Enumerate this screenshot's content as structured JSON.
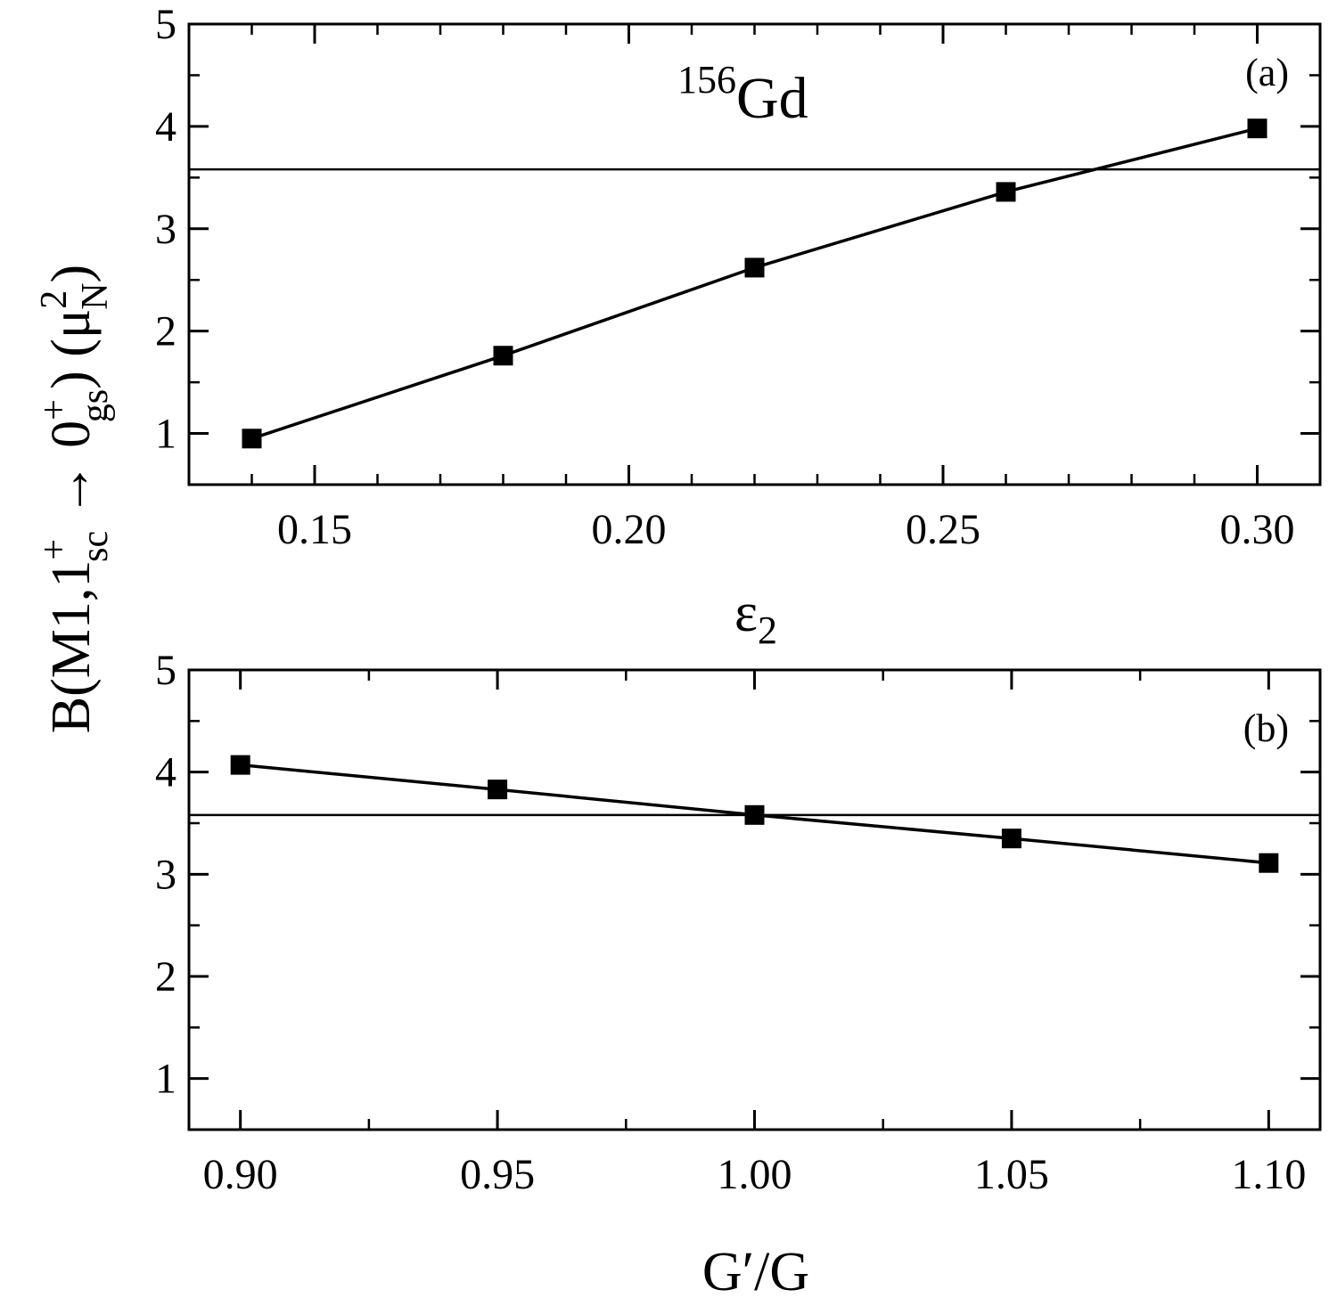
{
  "y_axis_title": {
    "main": "B(M1,1",
    "sup1": "+",
    "sub1": "sc",
    "arrow": " → 0",
    "sup2": "+",
    "sub2": "gs",
    "close": ") (μ",
    "sup3": "2",
    "sub3": "N",
    "end": ")"
  },
  "chart_data": [
    {
      "type": "line",
      "panel_label": "(a)",
      "annotation": {
        "mass": "156",
        "element": "Gd"
      },
      "xlabel": {
        "main": "ε",
        "sub": "2"
      },
      "x": [
        0.14,
        0.18,
        0.22,
        0.26,
        0.3
      ],
      "series": [
        {
          "values": [
            0.95,
            1.76,
            2.62,
            3.36,
            3.98
          ]
        }
      ],
      "reference_line": 3.58,
      "xlim": [
        0.13,
        0.31
      ],
      "ylim": [
        0.5,
        5
      ],
      "xticks": [
        "0.15",
        "0.20",
        "0.25",
        "0.30"
      ],
      "xtick_values": [
        0.15,
        0.2,
        0.25,
        0.3
      ],
      "yticks": [
        "1",
        "2",
        "3",
        "4",
        "5"
      ],
      "ytick_values": [
        1,
        2,
        3,
        4,
        5
      ],
      "minor_x_step": 0.01
    },
    {
      "type": "line",
      "panel_label": "(b)",
      "xlabel": {
        "main": "G′/G"
      },
      "x": [
        0.9,
        0.95,
        1.0,
        1.05,
        1.1
      ],
      "series": [
        {
          "values": [
            4.07,
            3.83,
            3.58,
            3.35,
            3.11
          ]
        }
      ],
      "reference_line": 3.58,
      "xlim": [
        0.89,
        1.11
      ],
      "ylim": [
        0.5,
        5
      ],
      "xticks": [
        "0.90",
        "0.95",
        "1.00",
        "1.05",
        "1.10"
      ],
      "xtick_values": [
        0.9,
        0.95,
        1.0,
        1.05,
        1.1
      ],
      "yticks": [
        "1",
        "2",
        "3",
        "4",
        "5"
      ],
      "ytick_values": [
        1,
        2,
        3,
        4,
        5
      ],
      "minor_x_step": 0.025
    }
  ]
}
